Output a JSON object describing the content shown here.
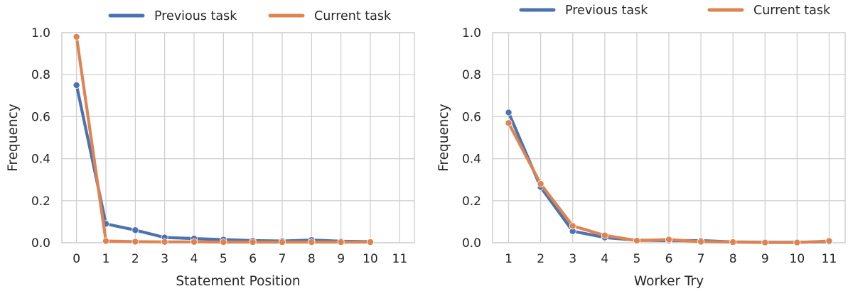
{
  "chart_data": [
    {
      "type": "line",
      "title": "",
      "xlabel": "Statement Position",
      "ylabel": "Frequency",
      "xlim": [
        -0.5,
        11.5
      ],
      "ylim": [
        0.0,
        1.0
      ],
      "x_ticks": [
        "0",
        "1",
        "2",
        "3",
        "4",
        "5",
        "6",
        "7",
        "8",
        "9",
        "10",
        "11"
      ],
      "y_ticks": [
        "0.0",
        "0.2",
        "0.4",
        "0.6",
        "0.8",
        "1.0"
      ],
      "grid": true,
      "legend_position": "top-center",
      "series": [
        {
          "name": "Previous task",
          "color": "#4c72b0",
          "x": [
            0,
            1,
            2,
            3,
            4,
            5,
            6,
            7,
            8,
            9,
            10
          ],
          "y": [
            0.75,
            0.09,
            0.06,
            0.025,
            0.02,
            0.015,
            0.01,
            0.008,
            0.013,
            0.007,
            0.005
          ]
        },
        {
          "name": "Current task",
          "color": "#dd8452",
          "x": [
            0,
            1,
            2,
            3,
            4,
            5,
            6,
            7,
            8,
            9,
            10
          ],
          "y": [
            0.98,
            0.008,
            0.005,
            0.004,
            0.004,
            0.003,
            0.003,
            0.003,
            0.003,
            0.003,
            0.003
          ]
        }
      ]
    },
    {
      "type": "line",
      "title": "",
      "xlabel": "Worker Try",
      "ylabel": "Frequency",
      "xlim": [
        0.5,
        11.5
      ],
      "ylim": [
        0.0,
        1.0
      ],
      "x_ticks": [
        "1",
        "2",
        "3",
        "4",
        "5",
        "6",
        "7",
        "8",
        "9",
        "10",
        "11"
      ],
      "y_ticks": [
        "0.0",
        "0.2",
        "0.4",
        "0.6",
        "0.8",
        "1.0"
      ],
      "grid": true,
      "legend_position": "top-center",
      "series": [
        {
          "name": "Previous task",
          "color": "#4c72b0",
          "x": [
            1,
            2,
            3,
            4,
            5,
            6,
            7,
            8,
            9,
            10,
            11
          ],
          "y": [
            0.62,
            0.265,
            0.055,
            0.025,
            0.012,
            0.01,
            0.01,
            0.004,
            0.002,
            0.002,
            0.005
          ]
        },
        {
          "name": "Current task",
          "color": "#dd8452",
          "x": [
            1,
            2,
            3,
            4,
            5,
            6,
            7,
            8,
            9,
            10,
            11
          ],
          "y": [
            0.57,
            0.28,
            0.08,
            0.035,
            0.01,
            0.015,
            0.005,
            0.003,
            0.001,
            0.001,
            0.008
          ]
        }
      ]
    }
  ]
}
